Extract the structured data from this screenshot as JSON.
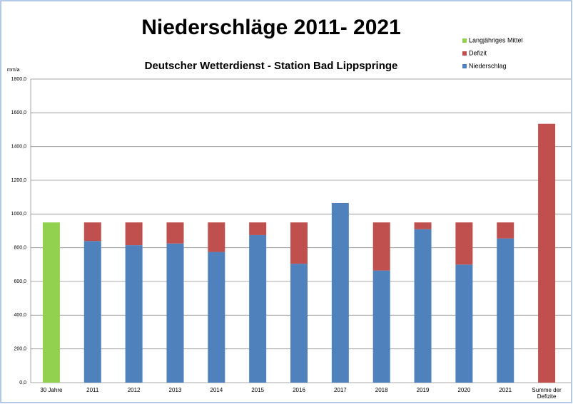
{
  "chart_data": {
    "type": "stacked-bar",
    "title": "Niederschläge 2011- 2021",
    "subtitle": "Deutscher Wetterdienst - Station Bad Lippspringe",
    "y_label": "mm/a",
    "categories": [
      "30 Jahre",
      "2011",
      "2012",
      "2013",
      "2014",
      "2015",
      "2016",
      "2017",
      "2018",
      "2019",
      "2020",
      "2021",
      "Summe der Defizite"
    ],
    "series": [
      {
        "name": "Langjähriges Mittel",
        "color": "#92d050",
        "values": [
          950,
          null,
          null,
          null,
          null,
          null,
          null,
          null,
          null,
          null,
          null,
          null,
          null
        ]
      },
      {
        "name": "Defizit",
        "color": "#c0504d",
        "values": [
          null,
          110,
          135,
          125,
          175,
          75,
          245,
          null,
          285,
          40,
          250,
          95,
          1535
        ]
      },
      {
        "name": "Niederschlag",
        "color": "#4f81bd",
        "values": [
          null,
          840,
          815,
          825,
          775,
          875,
          705,
          1065,
          665,
          910,
          700,
          855,
          null
        ]
      }
    ],
    "ylim": [
      0,
      1800
    ],
    "yticks": [
      {
        "value": 0,
        "label": "0,0"
      },
      {
        "value": 200,
        "label": "200,0"
      },
      {
        "value": 400,
        "label": "400,0"
      },
      {
        "value": 600,
        "label": "600,0"
      },
      {
        "value": 800,
        "label": "800,0"
      },
      {
        "value": 1000,
        "label": "1000,0"
      },
      {
        "value": 1200,
        "label": "1200,0"
      },
      {
        "value": 1400,
        "label": "1400,0"
      },
      {
        "value": 1600,
        "label": "1600,0"
      },
      {
        "value": 1800,
        "label": "1800,0"
      }
    ],
    "grid": true
  }
}
